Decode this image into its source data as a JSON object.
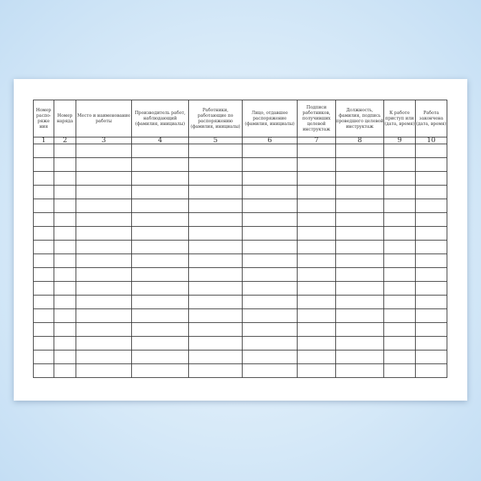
{
  "form": {
    "headers": [
      "Номер распо-ряже ния",
      "Номер наряда",
      "Место и наименование работы",
      "Производитель работ, наблюдающий (фамилия, инициалы)",
      "Работники, работающие по распоряжению (фамилия, инициалы)",
      "Лицо, отдавшее распоряжение (фамилия, инициалы)",
      "Подписи работников, получивших целевой инструктаж",
      "Должность, фамилия, подпись проведшего целевой инструктаж",
      "К работе приступ или (дата, время)",
      "Работа закончена (дата, время)"
    ],
    "column_numbers": [
      "1",
      "2",
      "3",
      "4",
      "5",
      "6",
      "7",
      "8",
      "9",
      "10"
    ],
    "empty_rows": 17
  }
}
